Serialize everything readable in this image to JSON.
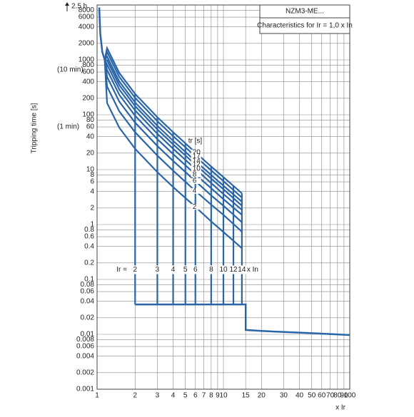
{
  "chart_data": {
    "type": "line",
    "log_x": true,
    "log_y": true,
    "grid": true,
    "color": "#2a65a8",
    "title": "NZM3-ME...",
    "subtitle": "Characteristics for Ir = 1,0 x In",
    "y_label": "Tripping time [s]",
    "x_label": "x Ir",
    "annotations": {
      "top": "2.5 h",
      "ten_min": "(10 min)",
      "one_min": "(1 min)",
      "tr_header": "tr [s]",
      "isd_prefix": "Ir =",
      "isd_suffix": "x In"
    },
    "xlim": [
      1,
      100
    ],
    "ylim": [
      0.001,
      10000
    ],
    "xticks": [
      1,
      2,
      3,
      4,
      5,
      6,
      7,
      8,
      9,
      10,
      15,
      20,
      30,
      40,
      50,
      60,
      70,
      80,
      90,
      100
    ],
    "yticks": [
      0.001,
      0.002,
      0.004,
      0.006,
      0.008,
      0.01,
      0.02,
      0.04,
      0.06,
      0.08,
      0.1,
      0.2,
      0.4,
      0.6,
      0.8,
      1,
      2,
      4,
      6,
      8,
      10,
      20,
      40,
      60,
      80,
      100,
      200,
      400,
      600,
      800,
      1000,
      2000,
      4000,
      6000,
      8000
    ],
    "x": [
      1.15,
      1.2,
      1.5,
      2,
      3,
      4,
      6,
      8,
      10,
      14
    ],
    "series": [
      {
        "name": "20",
        "values": [
          1000,
          1636,
          576,
          240,
          90,
          48,
          20.6,
          11.4,
          7.3,
          3.7
        ]
      },
      {
        "name": "17",
        "values": [
          1000,
          1391,
          490,
          204,
          76.5,
          40.8,
          17.5,
          9.7,
          6.2,
          3.1
        ]
      },
      {
        "name": "14",
        "values": [
          1000,
          1145,
          403,
          168,
          63,
          33.6,
          14.4,
          8,
          5.1,
          2.6
        ]
      },
      {
        "name": "12",
        "values": [
          1000,
          982,
          346,
          144,
          54,
          28.8,
          12.4,
          6.9,
          4.4,
          2.2
        ]
      },
      {
        "name": "10",
        "values": [
          1000,
          818,
          288,
          120,
          45,
          24,
          10.3,
          5.7,
          3.6,
          1.85
        ]
      },
      {
        "name": "8",
        "values": [
          1000,
          654,
          230,
          96,
          36,
          19.2,
          8.2,
          4.6,
          2.9,
          1.5
        ]
      },
      {
        "name": "6",
        "values": [
          1000,
          491,
          173,
          72,
          27,
          14.4,
          6.2,
          3.4,
          2.2,
          1.1
        ]
      },
      {
        "name": "4",
        "values": [
          1000,
          327,
          115,
          48,
          18,
          9.6,
          4.1,
          2.3,
          1.5,
          0.74
        ]
      },
      {
        "name": "2",
        "values": [
          1000,
          164,
          58,
          24,
          9,
          4.8,
          2.1,
          1.14,
          0.73,
          0.37
        ]
      }
    ],
    "extra_lines": [
      {
        "x": [
          1.04,
          1.06,
          1.1,
          1.15
        ],
        "values": [
          9000,
          3000,
          1400,
          1000
        ]
      },
      {
        "x": [
          2,
          15,
          15,
          20,
          50,
          100
        ],
        "values": [
          0.035,
          0.035,
          0.012,
          0.0115,
          0.0105,
          0.0097
        ]
      }
    ],
    "isd_lines": [
      {
        "x": 2,
        "from": 240,
        "to": 0.035
      },
      {
        "x": 3,
        "from": 90,
        "to": 0.035
      },
      {
        "x": 4,
        "from": 48,
        "to": 0.035
      },
      {
        "x": 5,
        "from": 30,
        "to": 0.035
      },
      {
        "x": 6,
        "from": 20.6,
        "to": 0.035
      },
      {
        "x": 8,
        "from": 11.4,
        "to": 0.035
      },
      {
        "x": 10,
        "from": 7.3,
        "to": 0.035
      },
      {
        "x": 12,
        "from": 5,
        "to": 0.035
      },
      {
        "x": 14,
        "from": 3.7,
        "to": 0.035
      }
    ],
    "isd_labels": [
      "2",
      "3",
      "4",
      "5",
      "6",
      "8",
      "10",
      "12",
      "14"
    ],
    "isd_label_y": 0.15
  }
}
